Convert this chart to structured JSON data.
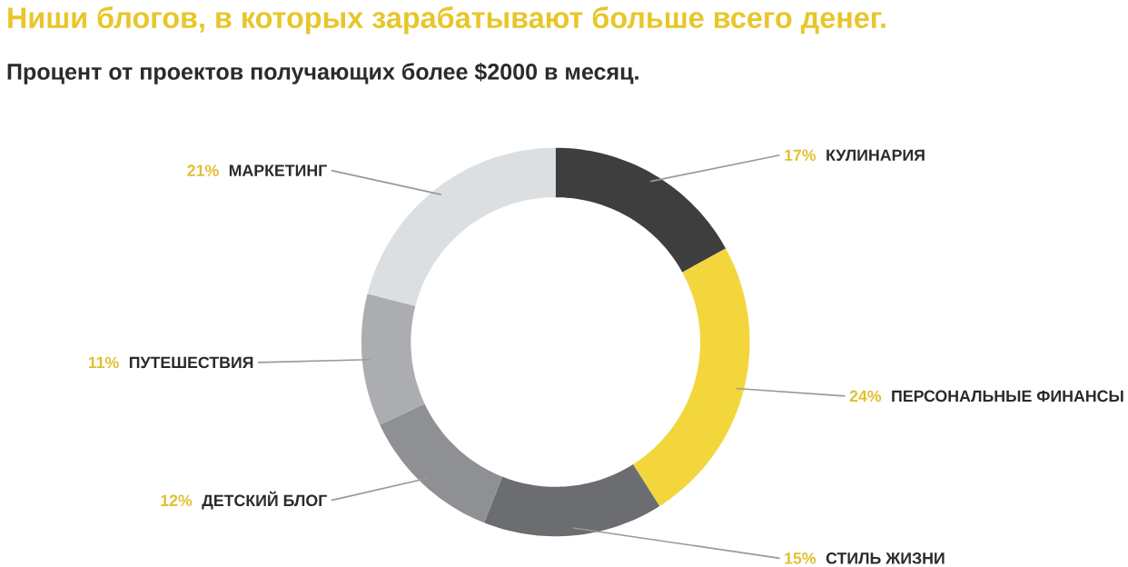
{
  "chart_data": {
    "type": "donut",
    "title": "Ниши блогов, в которых зарабатывают больше всего денег.",
    "subtitle": "Процент от проектов получающих более $2000 в месяц.",
    "categories": [
      "КУЛИНАРИЯ",
      "ПЕРСОНАЛЬНЫЕ ФИНАНСЫ",
      "СТИЛЬ ЖИЗНИ",
      "ДЕТСКИЙ БЛОГ",
      "ПУТЕШЕСТВИЯ",
      "МАРКЕТИНГ"
    ],
    "values": [
      17,
      24,
      15,
      12,
      11,
      21
    ],
    "value_labels": [
      "17%",
      "24%",
      "15%",
      "12%",
      "11%",
      "21%"
    ],
    "colors": [
      "#3e3e3e",
      "#f3d63c",
      "#6b6d70",
      "#8e9093",
      "#abadb0",
      "#dcdfe2"
    ]
  }
}
